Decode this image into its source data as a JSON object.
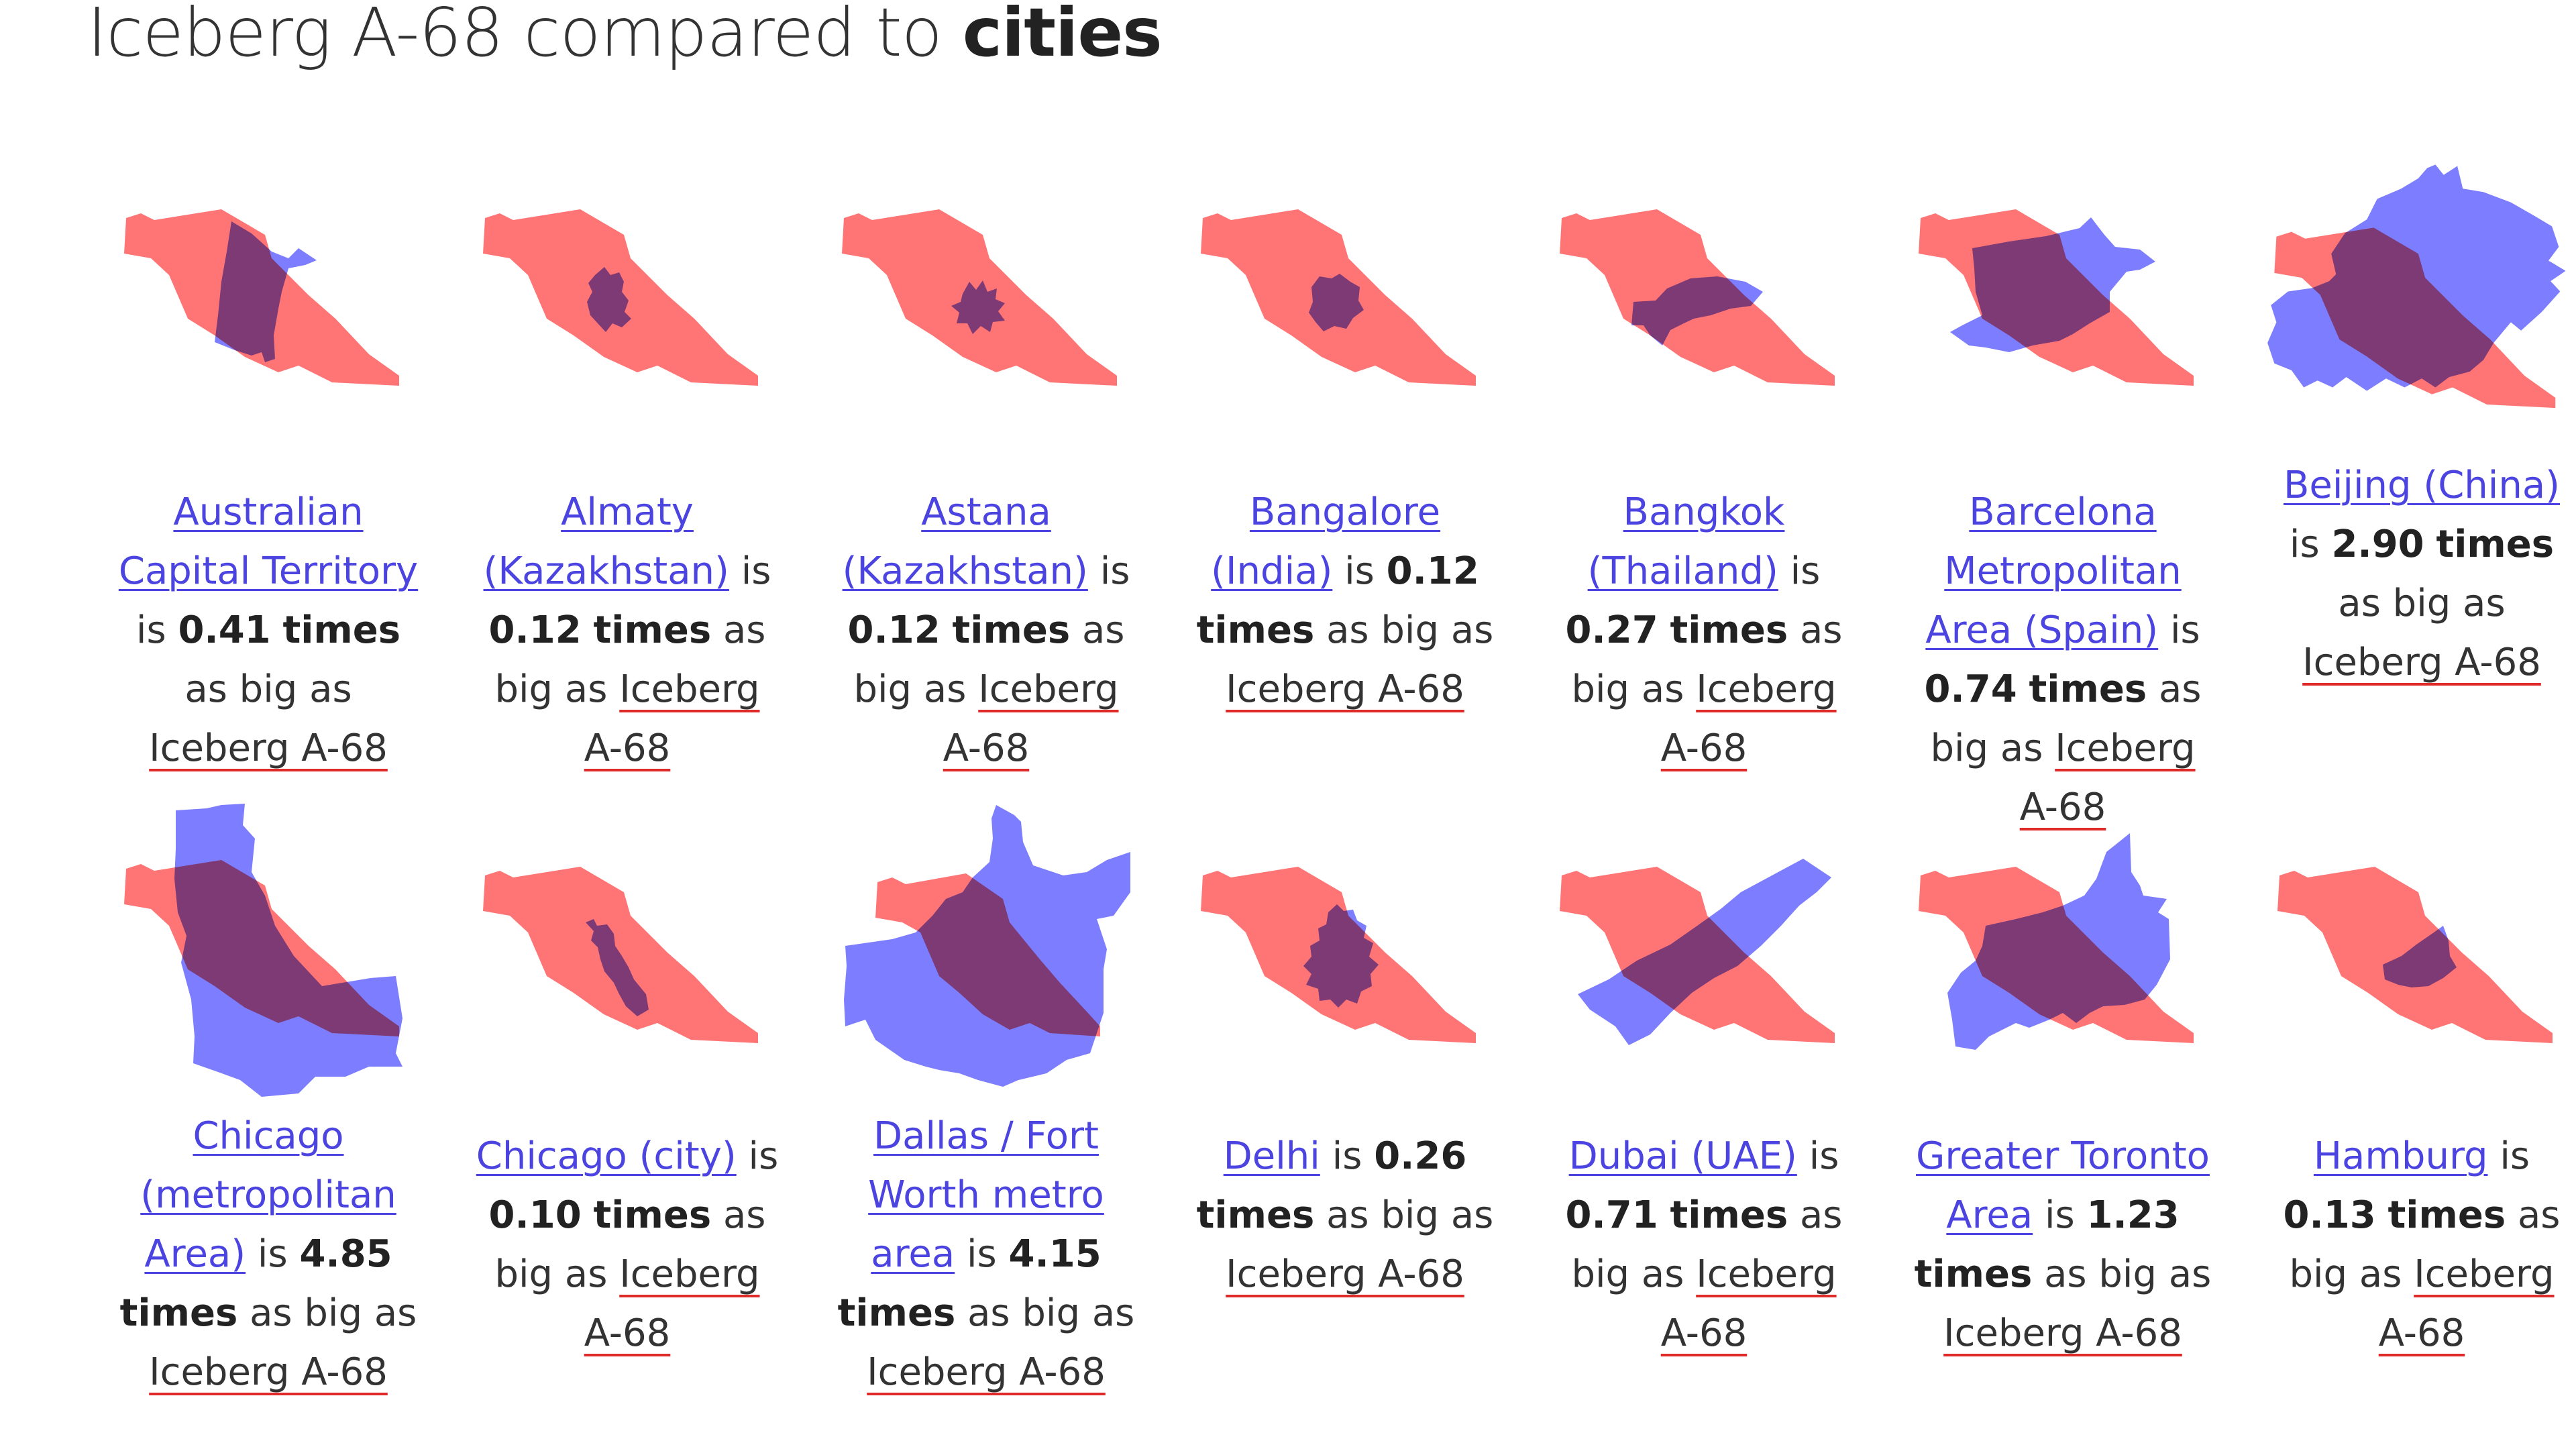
{
  "title": {
    "prefix": "Iceberg A-68 compared to ",
    "emphasis": "cities"
  },
  "colors": {
    "iceberg": "#ff7575",
    "city": "#6b6bff",
    "overlap": "#7b2ab8",
    "link": "#4b44e0",
    "reference_underline": "#e02a2a"
  },
  "phrases": {
    "is": "is",
    "times": "times",
    "as_big_as": "as big as",
    "reference": "Iceberg A-68"
  },
  "cities": [
    {
      "name": "Australian Capital Territory",
      "factor": "0.41"
    },
    {
      "name": "Almaty (Kazakhstan)",
      "factor": "0.12"
    },
    {
      "name": "Astana (Kazakhstan)",
      "factor": "0.12"
    },
    {
      "name": "Bangalore (India)",
      "factor": "0.12"
    },
    {
      "name": "Bangkok (Thailand)",
      "factor": "0.27"
    },
    {
      "name": "Barcelona Metropolitan Area (Spain)",
      "factor": "0.74"
    },
    {
      "name": "Beijing (China)",
      "factor": "2.90"
    },
    {
      "name": "Chicago (metropolitan Area)",
      "factor": "4.85"
    },
    {
      "name": "Chicago (city)",
      "factor": "0.10"
    },
    {
      "name": "Dallas / Fort Worth metro area",
      "factor": "4.15"
    },
    {
      "name": "Delhi",
      "factor": "0.26"
    },
    {
      "name": "Dubai (UAE)",
      "factor": "0.71"
    },
    {
      "name": "Greater Toronto Area",
      "factor": "1.23"
    },
    {
      "name": "Hamburg",
      "factor": "0.13"
    }
  ]
}
